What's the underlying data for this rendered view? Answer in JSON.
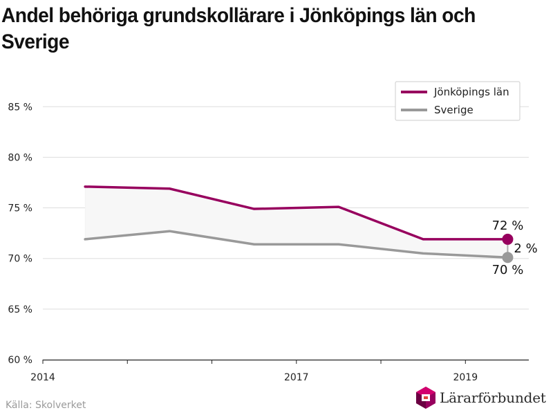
{
  "header": {
    "title": "Andel behöriga grundskollärare i Jönköpings län och Sverige"
  },
  "chart_data": {
    "type": "line",
    "title": "Andel behöriga grundskollärare i Jönköpings län och Sverige",
    "xlabel": "",
    "ylabel": "",
    "x_ticks": [
      "2014",
      "2017",
      "2019"
    ],
    "y_ticks": [
      "60 %",
      "65 %",
      "70 %",
      "75 %",
      "80 %",
      "85 %"
    ],
    "xlim": [
      2014,
      2019.75
    ],
    "ylim": [
      60,
      87
    ],
    "grid": true,
    "legend_position": "top-right",
    "x": [
      2014.5,
      2015.5,
      2016.5,
      2017.5,
      2018.5,
      2019.5
    ],
    "series": [
      {
        "name": "Jönköpings län",
        "color": "#97005e",
        "values": [
          77.1,
          76.9,
          74.9,
          75.1,
          71.9,
          71.9
        ]
      },
      {
        "name": "Sverige",
        "color": "#999999",
        "values": [
          71.9,
          72.7,
          71.4,
          71.4,
          70.5,
          70.1
        ]
      }
    ],
    "annotations": {
      "end_label_top": "72 %",
      "end_label_bottom": "70 %",
      "difference_label": "2 %"
    },
    "fill_between": {
      "color": "#f7f7f7"
    }
  },
  "footer": {
    "source": "Källa: Skolverket",
    "logo_text": "Lärarförbundet",
    "logo_icon": "lararforbundet-logo-icon"
  }
}
